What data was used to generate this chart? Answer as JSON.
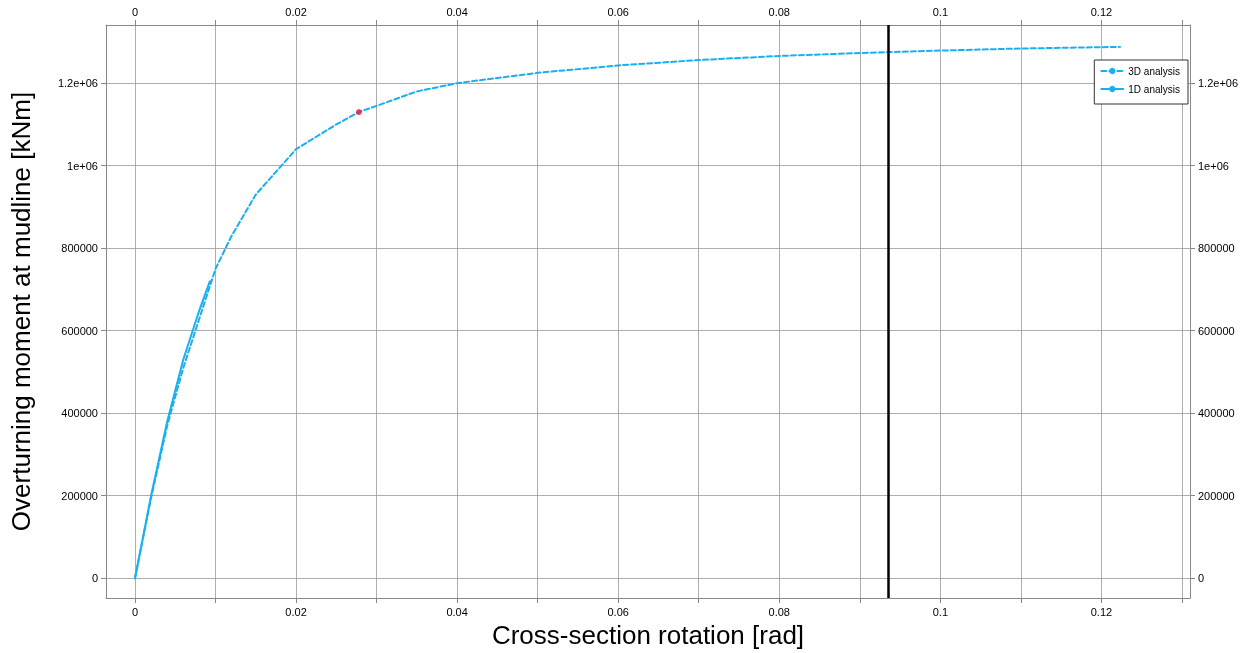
{
  "chart_data": {
    "type": "line",
    "xlabel": "Cross-section rotation [rad]",
    "ylabel": "Overturning moment at mudline [kNm]",
    "xlim": [
      -0.0036,
      0.131
    ],
    "ylim": [
      -48000,
      1341000
    ],
    "xticks": [
      0,
      {
        "value": 0.01,
        "label": null
      },
      0.02,
      {
        "value": 0.03,
        "label": null
      },
      0.04,
      {
        "value": 0.05,
        "label": null
      },
      0.06,
      {
        "value": 0.07,
        "label": null
      },
      0.08,
      {
        "value": 0.09,
        "label": null
      },
      0.1,
      {
        "value": 0.11,
        "label": null
      },
      0.12,
      {
        "value": 0.13,
        "label": null
      }
    ],
    "x2lim": [
      -0.0036,
      0.131
    ],
    "x2ticks": [
      0,
      {
        "value": 0.01,
        "label": null
      },
      0.02,
      {
        "value": 0.03,
        "label": null
      },
      0.04,
      {
        "value": 0.05,
        "label": null
      },
      0.06,
      {
        "value": 0.07,
        "label": null
      },
      0.08,
      {
        "value": 0.09,
        "label": null
      },
      0.1,
      {
        "value": 0.11,
        "label": null
      },
      0.12,
      {
        "value": 0.13,
        "label": null
      }
    ],
    "yticks": [
      0,
      200000,
      400000,
      600000,
      800000,
      {
        "value": 1000000,
        "label": "1e+06"
      },
      {
        "value": 1200000,
        "label": "1.2e+06"
      }
    ],
    "y2lim": [
      -48000,
      1341000
    ],
    "y2ticks": [
      0,
      200000,
      400000,
      600000,
      800000,
      {
        "value": 1000000,
        "label": "1e+06"
      },
      {
        "value": 1200000,
        "label": "1.2e+06"
      }
    ],
    "grid": true,
    "legend": "top right",
    "marker": "none",
    "ref_lines": [
      {
        "axis": "x",
        "value": 0.0935,
        "label": null,
        "color": "#000000",
        "line_style": "solid"
      }
    ],
    "series": [
      {
        "name": "3D analysis",
        "color": "#1ab0f0",
        "line_style": "dashed",
        "x": [
          0,
          0.002,
          0.004,
          0.006,
          0.008,
          0.01,
          0.012,
          0.015,
          0.02,
          0.025,
          0.0278,
          0.03,
          0.035,
          0.04,
          0.05,
          0.06,
          0.07,
          0.08,
          0.09,
          0.1,
          0.11,
          0.1223
        ],
        "values": [
          0,
          195000,
          370000,
          510000,
          630000,
          750000,
          830000,
          930000,
          1040000,
          1100000,
          1130000,
          1145000,
          1180000,
          1200000,
          1225000,
          1243000,
          1256000,
          1266000,
          1273000,
          1279000,
          1284000,
          1288000
        ]
      },
      {
        "name": "1D analysis",
        "color": "#1ab0f0",
        "line_style": "solid",
        "x": [
          0,
          0.002,
          0.004,
          0.006,
          0.008,
          0.0093
        ],
        "values": [
          0,
          200000,
          380000,
          530000,
          650000,
          720000
        ]
      },
      {
        "type": "scatter",
        "color": "#e8174f",
        "marker": "circle",
        "x": [
          0.0278
        ],
        "values": [
          1130000
        ]
      }
    ]
  }
}
